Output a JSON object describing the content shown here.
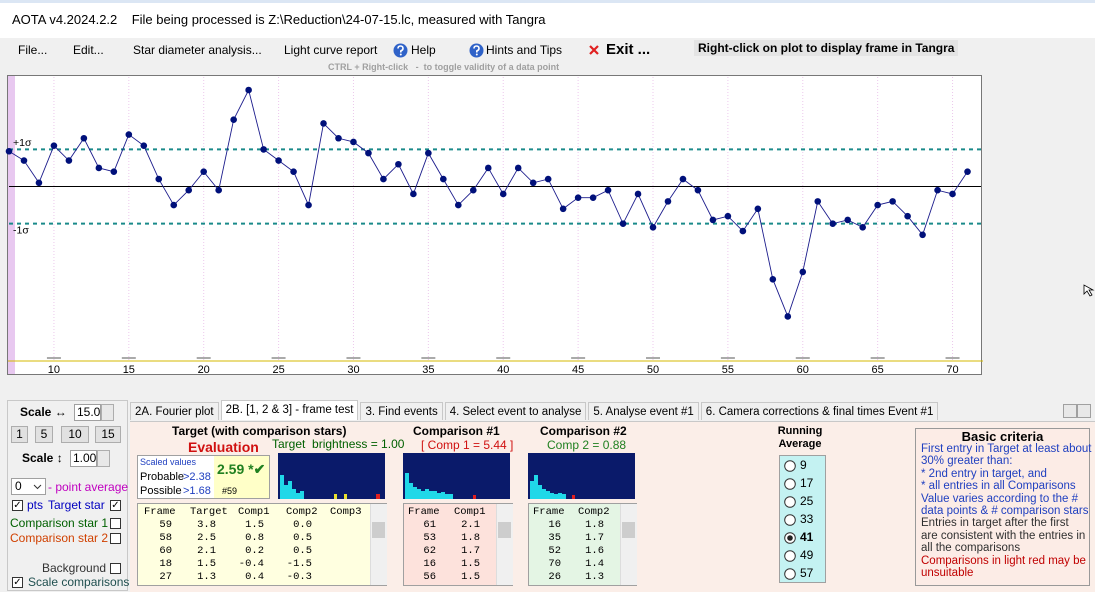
{
  "title_bar": "AOTA v4.2024.2.2    File being processed is Z:\\Reduction\\24-07-15.lc, measured with Tangra",
  "menu": {
    "items": [
      "File...",
      "Edit...",
      "Star diameter analysis...",
      "Light curve report",
      "Help",
      "Hints and Tips",
      "Exit ..."
    ],
    "right_click_hint": "Right-click on plot to display frame in Tangra",
    "ctrl_hint": "CTRL + Right-click   -  to toggle validity of a data point"
  },
  "chart_data": {
    "type": "line",
    "x": [
      7,
      8,
      9,
      10,
      11,
      12,
      13,
      14,
      15,
      16,
      17,
      18,
      19,
      20,
      21,
      22,
      23,
      24,
      25,
      26,
      27,
      28,
      29,
      30,
      31,
      32,
      33,
      34,
      35,
      36,
      37,
      38,
      39,
      40,
      41,
      42,
      43,
      44,
      45,
      46,
      47,
      48,
      49,
      50,
      51,
      52,
      53,
      54,
      55,
      56,
      57,
      58,
      59,
      60,
      61,
      62,
      63,
      64,
      65,
      66,
      67,
      68,
      69,
      70,
      71
    ],
    "values": [
      0.95,
      0.7,
      0.1,
      1.1,
      0.7,
      1.3,
      0.5,
      0.4,
      1.4,
      1.1,
      0.2,
      -0.5,
      -0.1,
      0.4,
      -0.1,
      1.8,
      2.6,
      1.0,
      0.7,
      0.4,
      -0.5,
      1.7,
      1.3,
      1.2,
      0.9,
      0.2,
      0.6,
      -0.2,
      0.9,
      0.2,
      -0.5,
      -0.1,
      0.5,
      -0.2,
      0.5,
      0.1,
      0.2,
      -0.6,
      -0.3,
      -0.3,
      -0.1,
      -1.0,
      -0.2,
      -1.1,
      -0.4,
      0.2,
      -0.1,
      -0.9,
      -0.8,
      -1.2,
      -0.6,
      -2.5,
      -3.5,
      -2.3,
      -0.4,
      -1.0,
      -0.9,
      -1.1,
      -0.5,
      -0.4,
      -0.8,
      -1.3,
      -0.1,
      -0.2,
      0.4
    ],
    "color": "#1c1c8c",
    "xlim": [
      7,
      71.9
    ],
    "xticks": [
      10,
      15,
      20,
      25,
      30,
      35,
      40,
      45,
      50,
      55,
      60,
      65,
      70
    ],
    "ylim": [
      -4.7,
      2.95
    ],
    "yticks": [
      {
        "value": 1,
        "label": "+1σ"
      },
      {
        "value": -1,
        "label": "-1σ"
      }
    ],
    "grid": true
  },
  "controls": {
    "scale_h_label": "Scale ↔",
    "scale_h_value": "15.0",
    "scale_buttons": [
      "1",
      "5",
      "10",
      "15"
    ],
    "scale_v_label": "Scale ↕",
    "scale_v_value": "1.00",
    "point_average_value": "0",
    "point_average_label": "- point average",
    "pts": "pts",
    "target_star": "Target star",
    "comparison_star_1": "Comparison star 1",
    "comparison_star_2": "Comparison star 2",
    "background": "Background",
    "scale_comparisons": "Scale comparisons"
  },
  "tabs": [
    "2A. Fourier plot",
    "2B. [1, 2 & 3] - frame test",
    "3. Find events",
    "4. Select event to analyse",
    "5. Analyse event #1",
    "6. Camera corrections & final times Event #1"
  ],
  "active_tab": 1,
  "frame_test": {
    "target_title": "Target (with comparison stars)",
    "evaluation": "Evaluation",
    "target_brightness": "Target  brightness = 1.00",
    "scaled_values": "Scaled values",
    "probable": "Probable",
    "probable_value": ">2.38",
    "possible": "Possible",
    "possible_value": ">1.68",
    "result": "2.59 *✔",
    "result_frame": "#59",
    "target_table": {
      "header": [
        "Frame",
        "Target",
        "Comp1",
        "Comp2",
        "Comp3"
      ],
      "rows": [
        [
          "59",
          "3.8",
          "1.5",
          "0.0"
        ],
        [
          "58",
          "2.5",
          "0.8",
          "0.5"
        ],
        [
          "60",
          "2.1",
          "0.2",
          "0.5"
        ],
        [
          "18",
          "1.5",
          "-0.4",
          "-1.5"
        ],
        [
          "27",
          "1.3",
          "0.4",
          "-0.3"
        ]
      ]
    },
    "comp1_title": "Comparison #1",
    "comp1_value": "[ Comp 1 = 5.44 ]",
    "comp1_table": {
      "header": [
        "Frame",
        "Comp1"
      ],
      "rows": [
        [
          "61",
          "2.1"
        ],
        [
          "53",
          "1.8"
        ],
        [
          "62",
          "1.7"
        ],
        [
          "16",
          "1.5"
        ],
        [
          "56",
          "1.5"
        ]
      ]
    },
    "comp2_title": "Comparison #2",
    "comp2_value": "Comp 2 = 0.88",
    "comp2_table": {
      "header": [
        "Frame",
        "Comp2"
      ],
      "rows": [
        [
          "16",
          "1.8"
        ],
        [
          "35",
          "1.7"
        ],
        [
          "52",
          "1.6"
        ],
        [
          "70",
          "1.4"
        ],
        [
          "26",
          "1.3"
        ]
      ]
    }
  },
  "running_average": {
    "title": "Running Average",
    "options": [
      "9",
      "17",
      "25",
      "33",
      "41",
      "49",
      "57"
    ],
    "selected": 4
  },
  "basic_criteria": {
    "title": "Basic criteria",
    "line1": "First entry in Target at least about 30% greater than:",
    "line2": "*  2nd  entry in target, and",
    "line3": "*  all entries in all Comparisons",
    "line4": "Value varies according to the # data points & # comparison stars",
    "line5": "Entries in target after the first are consistent with the entries in all the comparisons",
    "line6": "Comparisons in light red may be unsuitable"
  }
}
